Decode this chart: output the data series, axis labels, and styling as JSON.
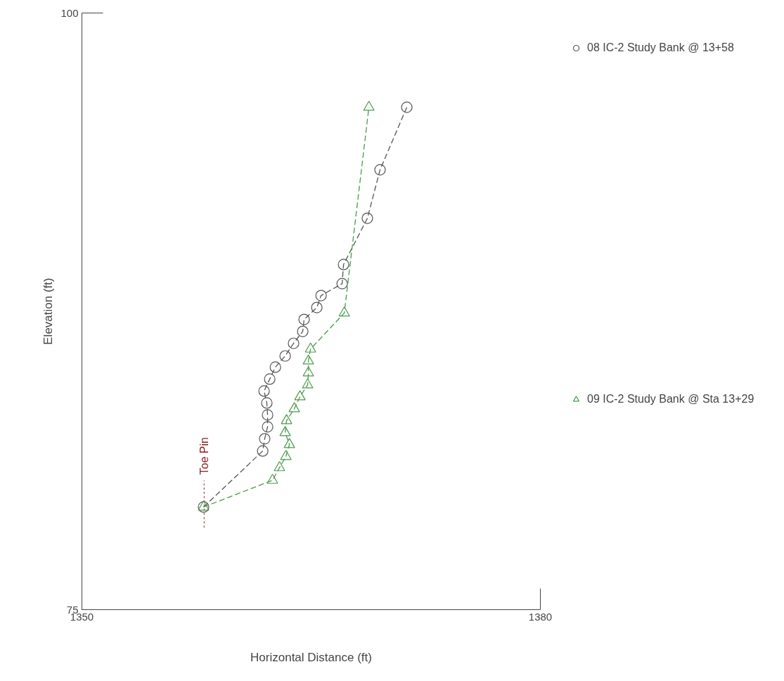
{
  "chart_data": {
    "type": "line",
    "xlabel": "Horizontal Distance (ft)",
    "ylabel": "Elevation (ft)",
    "xlim": [
      1350,
      1380
    ],
    "xticks": [
      1350,
      1380
    ],
    "ylim": [
      75,
      100
    ],
    "yticks": [
      75,
      100
    ],
    "legend": "right",
    "series": [
      {
        "name": "08 IC-2 Study Bank @ 13+58",
        "color": "#555555",
        "marker": "circle",
        "line_style": "dashed",
        "x": [
          1357.96,
          1361.83,
          1361.96,
          1362.15,
          1362.15,
          1362.1,
          1361.92,
          1362.29,
          1362.66,
          1363.3,
          1363.85,
          1364.45,
          1364.54,
          1365.37,
          1365.65,
          1367.03,
          1367.12,
          1368.68,
          1369.51,
          1371.26
        ],
        "values": [
          79.3,
          81.65,
          82.16,
          82.66,
          83.16,
          83.66,
          84.16,
          84.66,
          85.16,
          85.63,
          86.16,
          86.66,
          87.16,
          87.66,
          88.16,
          88.66,
          89.46,
          91.4,
          93.43,
          96.05
        ]
      },
      {
        "name": "09 IC-2 Study Bank @ Sta 13+29",
        "color": "#4a9a4a",
        "marker": "triangle",
        "line_style": "dashed",
        "x": [
          1357.96,
          1362.47,
          1362.93,
          1363.35,
          1363.58,
          1363.3,
          1363.39,
          1363.9,
          1364.27,
          1364.77,
          1364.82,
          1364.82,
          1364.96,
          1367.17,
          1368.78
        ],
        "values": [
          79.3,
          80.42,
          80.95,
          81.42,
          81.92,
          82.42,
          82.92,
          83.42,
          83.92,
          84.42,
          84.92,
          85.42,
          85.92,
          87.43,
          96.05
        ]
      },
      {
        "color": "#a05a5a",
        "marker": "none",
        "line_style": "dotted",
        "x": [
          1358,
          1358
        ],
        "values": [
          78.44,
          80.42
        ]
      }
    ],
    "annotations": [
      "Toe Pin"
    ]
  }
}
